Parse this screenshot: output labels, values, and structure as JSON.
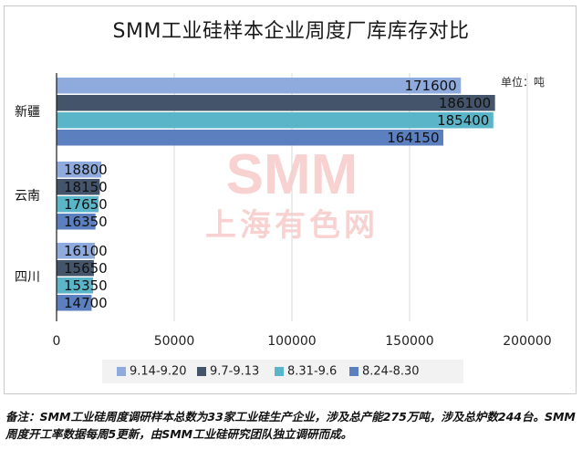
{
  "chart_data": {
    "type": "bar",
    "orientation": "horizontal",
    "title": "SMM工业硅样本企业周度厂库库存对比",
    "unit_label": "单位：吨",
    "categories": [
      "新疆",
      "云南",
      "四川"
    ],
    "series": [
      {
        "name": "9.14-9.20",
        "color": "#8faadc",
        "values": [
          171600,
          18800,
          16100
        ]
      },
      {
        "name": "9.7-9.13",
        "color": "#44546a",
        "values": [
          186100,
          18150,
          15650
        ]
      },
      {
        "name": "8.31-9.6",
        "color": "#5bb5c9",
        "values": [
          185400,
          17650,
          15350
        ]
      },
      {
        "name": "8.24-8.30",
        "color": "#5b7fbf",
        "values": [
          164150,
          16350,
          14700
        ]
      }
    ],
    "xlim": [
      0,
      200000
    ],
    "xticks": [
      0,
      50000,
      100000,
      150000,
      200000
    ],
    "legend_position": "bottom",
    "grid": true
  },
  "watermark": {
    "top": "SMM",
    "bottom": "上海有色网"
  },
  "note": "备注：SMM工业硅周度调研样本总数为33家工业硅生产企业，涉及总产能275万吨，涉及总炉数244台。SMM周度开工率数据每周5更新，由SMM工业硅研究团队独立调研而成。"
}
